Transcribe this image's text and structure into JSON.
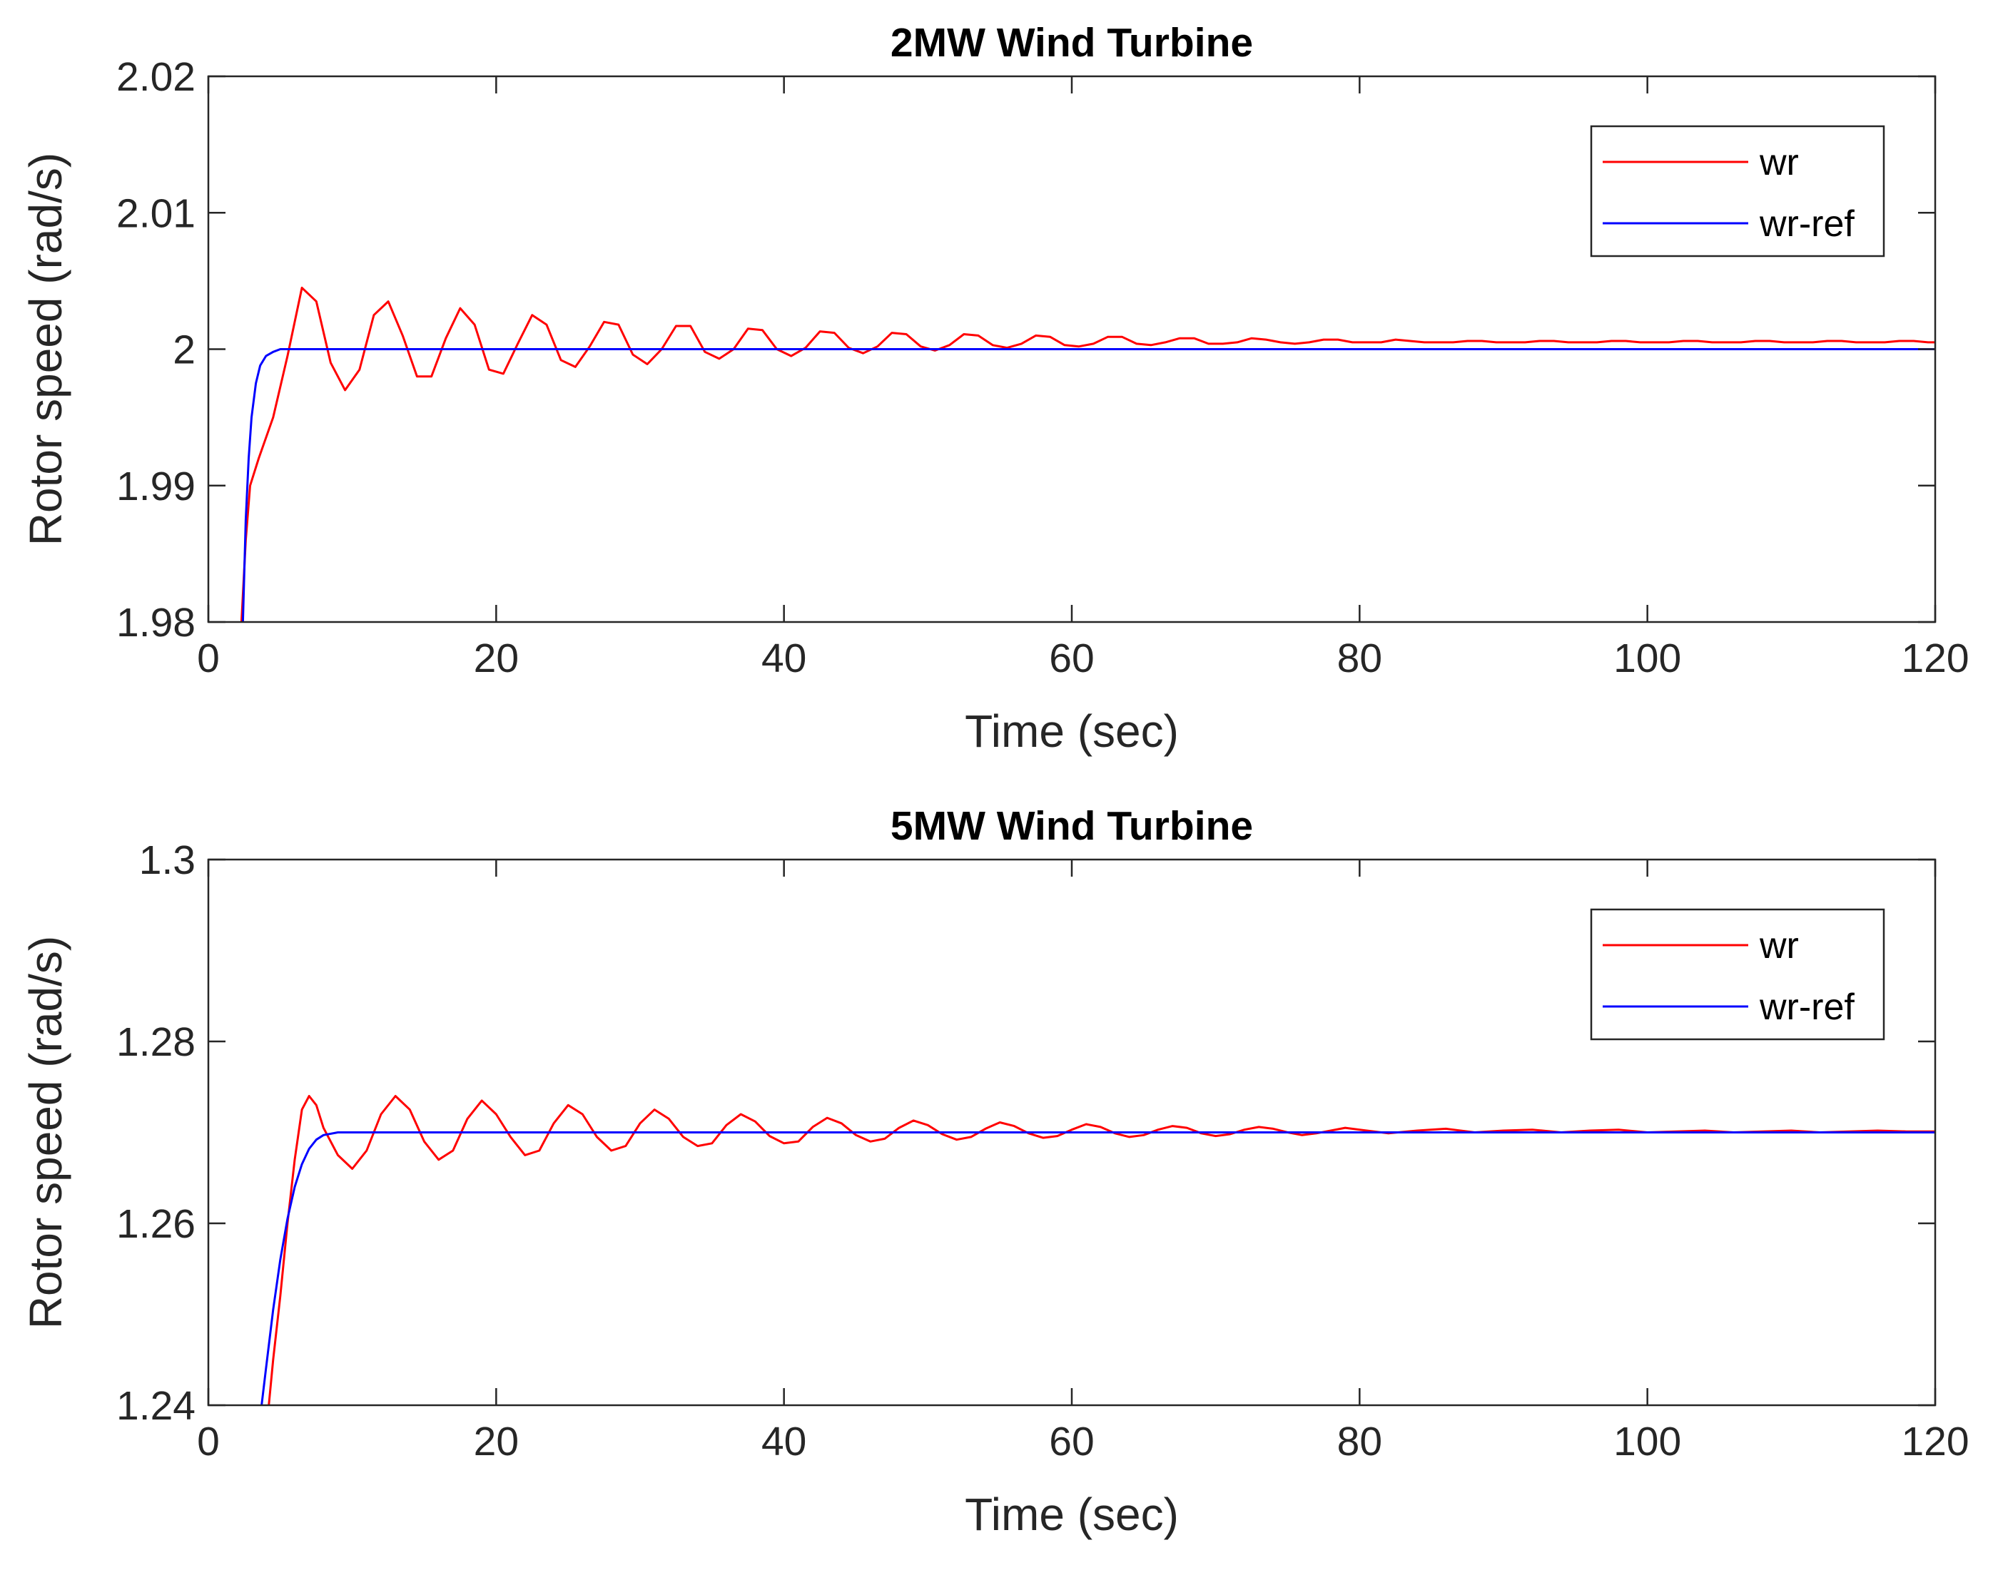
{
  "chart_data": [
    {
      "type": "line",
      "title": "2MW Wind Turbine",
      "xlabel": "Time (sec)",
      "ylabel": "Rotor speed (rad/s)",
      "xlim": [
        0,
        120
      ],
      "ylim": [
        1.98,
        2.02
      ],
      "xticks": [
        "0",
        "20",
        "40",
        "60",
        "80",
        "100",
        "120"
      ],
      "yticks": [
        "1.98",
        "1.99",
        "2",
        "2.01",
        "2.02"
      ],
      "grid": false,
      "legend_position": "top-right",
      "series": [
        {
          "name": "wr",
          "color": "#ff0000",
          "x": [
            2.3,
            2.6,
            2.9,
            3.5,
            4.5,
            5.5,
            6.5,
            7.5,
            8.5,
            9.5,
            10.5,
            11.5,
            12.5,
            13.5,
            14.5,
            15.5,
            16.5,
            17.5,
            18.5,
            19.5,
            20.5,
            21.5,
            22.5,
            23.5,
            24.5,
            25.5,
            26.5,
            27.5,
            28.5,
            29.5,
            30.5,
            31.5,
            32.5,
            33.5,
            34.5,
            35.5,
            36.5,
            37.5,
            38.5,
            39.5,
            40.5,
            41.5,
            42.5,
            43.5,
            44.5,
            45.5,
            46.5,
            47.5,
            48.5,
            49.5,
            50.5,
            51.5,
            52.5,
            53.5,
            54.5,
            55.5,
            56.5,
            57.5,
            58.5,
            59.5,
            60.5,
            61.5,
            62.5,
            63.5,
            64.5,
            65.5,
            66.5,
            67.5,
            68.5,
            69.5,
            70.5,
            71.5,
            72.5,
            73.5,
            74.5,
            75.5,
            76.5,
            77.5,
            78.5,
            79.5,
            80.5,
            81.5,
            82.5,
            83.5,
            84.5,
            85.5,
            86.5,
            87.5,
            88.5,
            89.5,
            90.5,
            91.5,
            92.5,
            93.5,
            94.5,
            95.5,
            96.5,
            97.5,
            98.5,
            99.5,
            100.5,
            101.5,
            102.5,
            103.5,
            104.5,
            105.5,
            106.5,
            107.5,
            108.5,
            109.5,
            110.5,
            111.5,
            112.5,
            113.5,
            114.5,
            115.5,
            116.5,
            117.5,
            118.5,
            119.5,
            120
          ],
          "y": [
            1.98,
            1.986,
            1.99,
            1.992,
            1.995,
            1.9995,
            2.0045,
            2.0035,
            1.999,
            1.997,
            1.9985,
            2.0025,
            2.0035,
            2.001,
            1.998,
            1.998,
            2.0008,
            2.003,
            2.0018,
            1.9985,
            1.9982,
            2.0004,
            2.0025,
            2.0018,
            1.9992,
            1.9987,
            2.0002,
            2.002,
            2.0018,
            1.9996,
            1.9989,
            2.0,
            2.0017,
            2.0017,
            1.9998,
            1.9993,
            2.0,
            2.0015,
            2.0014,
            2.0,
            1.9995,
            2.0001,
            2.0013,
            2.0012,
            2.0001,
            1.9997,
            2.0002,
            2.0012,
            2.0011,
            2.0002,
            1.9999,
            2.0003,
            2.0011,
            2.001,
            2.0003,
            2.0001,
            2.0004,
            2.001,
            2.0009,
            2.0003,
            2.0002,
            2.0004,
            2.0009,
            2.0009,
            2.0004,
            2.0003,
            2.0005,
            2.0008,
            2.0008,
            2.0004,
            2.0004,
            2.0005,
            2.0008,
            2.0007,
            2.0005,
            2.0004,
            2.0005,
            2.0007,
            2.0007,
            2.0005,
            2.0005,
            2.0005,
            2.0007,
            2.0006,
            2.0005,
            2.0005,
            2.0005,
            2.0006,
            2.0006,
            2.0005,
            2.0005,
            2.0005,
            2.0006,
            2.0006,
            2.0005,
            2.0005,
            2.0005,
            2.0006,
            2.0006,
            2.0005,
            2.0005,
            2.0005,
            2.0006,
            2.0006,
            2.0005,
            2.0005,
            2.0005,
            2.0006,
            2.0006,
            2.0005,
            2.0005,
            2.0005,
            2.0006,
            2.0006,
            2.0005,
            2.0005,
            2.0005,
            2.0006,
            2.0006,
            2.0005,
            2.0005
          ]
        },
        {
          "name": "wr-ref",
          "color": "#0000ff",
          "x": [
            2.4,
            2.6,
            2.8,
            3.0,
            3.3,
            3.6,
            4.0,
            4.5,
            5.0,
            6.0,
            8.0,
            120
          ],
          "y": [
            1.98,
            1.9875,
            1.992,
            1.995,
            1.9975,
            1.9988,
            1.9995,
            1.9998,
            2.0,
            2.0,
            2.0,
            2.0
          ]
        }
      ]
    },
    {
      "type": "line",
      "title": "5MW Wind Turbine",
      "xlabel": "Time (sec)",
      "ylabel": "Rotor speed (rad/s)",
      "xlim": [
        0,
        120
      ],
      "ylim": [
        1.24,
        1.3
      ],
      "xticks": [
        "0",
        "20",
        "40",
        "60",
        "80",
        "100",
        "120"
      ],
      "yticks": [
        "1.24",
        "1.26",
        "1.28",
        "1.3"
      ],
      "grid": false,
      "legend_position": "top-right",
      "series": [
        {
          "name": "wr",
          "color": "#ff0000",
          "x": [
            4.2,
            4.5,
            5.0,
            5.5,
            6.0,
            6.5,
            7.0,
            7.5,
            8.0,
            9.0,
            10.0,
            11.0,
            12.0,
            13.0,
            14.0,
            15.0,
            16.0,
            17.0,
            18.0,
            19.0,
            20.0,
            21.0,
            22.0,
            23.0,
            24.0,
            25.0,
            26.0,
            27.0,
            28.0,
            29.0,
            30.0,
            31.0,
            32.0,
            33.0,
            34.0,
            35.0,
            36.0,
            37.0,
            38.0,
            39.0,
            40.0,
            41.0,
            42.0,
            43.0,
            44.0,
            45.0,
            46.0,
            47.0,
            48.0,
            49.0,
            50.0,
            51.0,
            52.0,
            53.0,
            54.0,
            55.0,
            56.0,
            57.0,
            58.0,
            59.0,
            60.0,
            61.0,
            62.0,
            63.0,
            64.0,
            65.0,
            66.0,
            67.0,
            68.0,
            69.0,
            70.0,
            71.0,
            72.0,
            73.0,
            74.0,
            75.0,
            76.0,
            77.0,
            78.0,
            79.0,
            80.0,
            82.0,
            84.0,
            86.0,
            88.0,
            90.0,
            92.0,
            94.0,
            96.0,
            98.0,
            100.0,
            102.0,
            104.0,
            106.0,
            108.0,
            110.0,
            112.0,
            114.0,
            116.0,
            118.0,
            120.0
          ],
          "y": [
            1.24,
            1.245,
            1.252,
            1.26,
            1.267,
            1.2725,
            1.274,
            1.273,
            1.2705,
            1.2675,
            1.266,
            1.268,
            1.272,
            1.274,
            1.2725,
            1.269,
            1.267,
            1.268,
            1.2715,
            1.2735,
            1.272,
            1.2695,
            1.2675,
            1.268,
            1.271,
            1.273,
            1.272,
            1.2695,
            1.268,
            1.2685,
            1.271,
            1.2725,
            1.2715,
            1.2695,
            1.2685,
            1.2688,
            1.2708,
            1.272,
            1.2712,
            1.2696,
            1.2688,
            1.269,
            1.2706,
            1.2716,
            1.271,
            1.2697,
            1.269,
            1.2693,
            1.2705,
            1.2713,
            1.2708,
            1.2698,
            1.2692,
            1.2695,
            1.2704,
            1.2711,
            1.2707,
            1.2699,
            1.2694,
            1.2696,
            1.2703,
            1.2709,
            1.2706,
            1.2699,
            1.2695,
            1.2697,
            1.2703,
            1.2707,
            1.2705,
            1.2699,
            1.2696,
            1.2698,
            1.2703,
            1.2706,
            1.2704,
            1.27,
            1.2697,
            1.2699,
            1.2702,
            1.2705,
            1.2703,
            1.2699,
            1.2702,
            1.2704,
            1.27,
            1.2702,
            1.2703,
            1.27,
            1.2702,
            1.2703,
            1.27,
            1.2701,
            1.2702,
            1.27,
            1.2701,
            1.2702,
            1.27,
            1.2701,
            1.2702,
            1.2701,
            1.2701
          ]
        },
        {
          "name": "wr-ref",
          "color": "#0000ff",
          "x": [
            3.7,
            4.0,
            4.5,
            5.0,
            5.5,
            6.0,
            6.5,
            7.0,
            7.5,
            8.0,
            9.0,
            10.0,
            12.0,
            120.0
          ],
          "y": [
            1.24,
            1.244,
            1.2505,
            1.256,
            1.2605,
            1.264,
            1.2665,
            1.2682,
            1.2692,
            1.2697,
            1.27,
            1.27,
            1.27,
            1.27
          ]
        }
      ]
    }
  ]
}
